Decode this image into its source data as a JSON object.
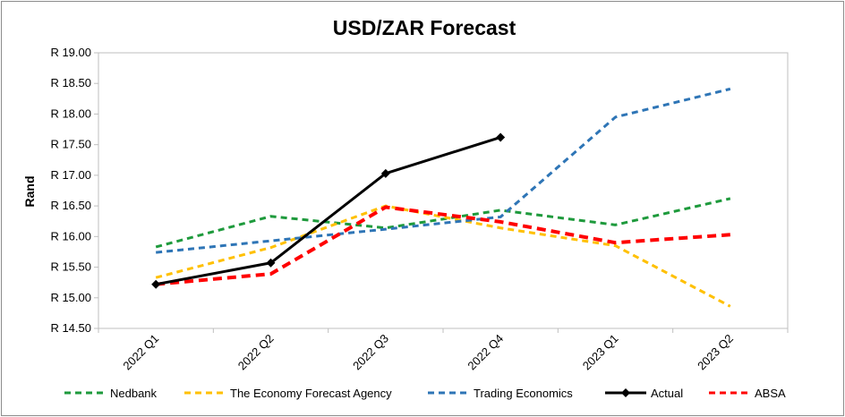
{
  "chart_data": {
    "type": "line",
    "title": "USD/ZAR Forecast",
    "ylabel": "Rand",
    "xlabel": "",
    "categories": [
      "2022 Q1",
      "2022 Q2",
      "2022 Q3",
      "2022 Q4",
      "2023 Q1",
      "2023 Q2"
    ],
    "ylim": [
      14.5,
      19.0
    ],
    "yticks": [
      14.5,
      15.0,
      15.5,
      16.0,
      16.5,
      17.0,
      17.5,
      18.0,
      18.5,
      19.0
    ],
    "ytick_prefix": "R ",
    "grid": false,
    "legend_position": "bottom",
    "series": [
      {
        "name": "Nedbank",
        "color": "#1e9a3c",
        "style": "dashed",
        "marker": "none",
        "values": [
          15.83,
          16.33,
          16.14,
          16.43,
          16.19,
          16.62
        ]
      },
      {
        "name": "The Economy Forecast Agency",
        "color": "#ffc000",
        "style": "dashed",
        "marker": "none",
        "values": [
          15.33,
          15.82,
          16.5,
          16.14,
          15.85,
          14.86
        ]
      },
      {
        "name": "Trading Economics",
        "color": "#2e75b6",
        "style": "dashed",
        "marker": "none",
        "values": [
          15.74,
          15.93,
          16.12,
          16.32,
          17.95,
          18.41
        ]
      },
      {
        "name": "Actual",
        "color": "#000000",
        "style": "solid",
        "marker": "diamond",
        "values": [
          15.22,
          15.57,
          17.03,
          17.62,
          null,
          null
        ]
      },
      {
        "name": "ABSA",
        "color": "#ff0000",
        "style": "dashed",
        "marker": "none",
        "values": [
          15.22,
          15.39,
          16.48,
          16.24,
          15.9,
          16.03
        ]
      }
    ]
  }
}
